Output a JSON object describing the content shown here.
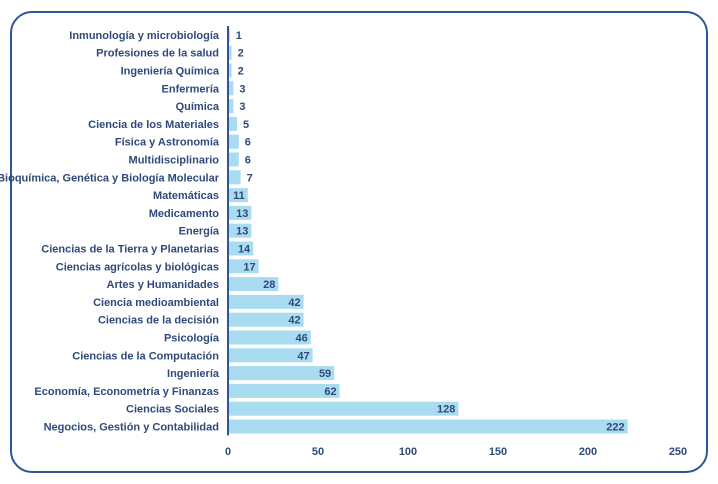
{
  "chart_data": {
    "type": "bar",
    "orientation": "horizontal",
    "categories": [
      "Inmunología y microbiología",
      "Profesiones de la salud",
      "Ingeniería Química",
      "Enfermería",
      "Química",
      "Ciencia de los Materiales",
      "Física y Astronomía",
      "Multidisciplinario",
      "Bioquímica, Genética y Biología Molecular",
      "Matemáticas",
      "Medicamento",
      "Energía",
      "Ciencias de la Tierra y Planetarias",
      "Ciencias agrícolas y biológicas",
      "Artes y Humanidades",
      "Ciencia medioambiental",
      "Ciencias de la decisión",
      "Psicología",
      "Ciencias de la Computación",
      "Ingeniería",
      "Economía, Econometría y Finanzas",
      "Ciencias Sociales",
      "Negocios, Gestión y Contabilidad"
    ],
    "values": [
      1,
      2,
      2,
      3,
      3,
      5,
      6,
      6,
      7,
      11,
      13,
      13,
      14,
      17,
      28,
      42,
      42,
      46,
      47,
      59,
      62,
      128,
      222
    ],
    "xlim": [
      0,
      250
    ],
    "xticks": [
      0,
      50,
      100,
      150,
      200,
      250
    ],
    "grid": false,
    "legend": "none",
    "colors": {
      "bar": "#a9dcf0",
      "axis": "#2f5597",
      "text": "#2f4a7a",
      "frame": "#2f5597"
    }
  }
}
